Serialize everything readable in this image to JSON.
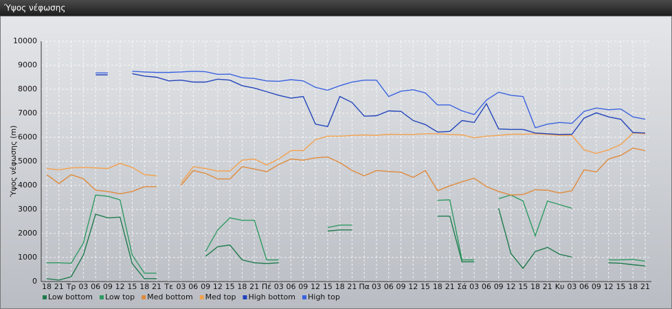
{
  "chart_data": {
    "type": "line",
    "title": "Ύψος νέφωσης",
    "ylabel": "Ύψος νέφωσης (m)",
    "categories": [
      "18",
      "21",
      "Τρ",
      "03",
      "06",
      "09",
      "12",
      "15",
      "18",
      "21",
      "Τε",
      "03",
      "06",
      "09",
      "12",
      "15",
      "18",
      "21",
      "Πέ",
      "03",
      "06",
      "09",
      "12",
      "15",
      "18",
      "21",
      "Πα",
      "03",
      "06",
      "09",
      "12",
      "15",
      "18",
      "21",
      "Σά",
      "03",
      "06",
      "09",
      "12",
      "15",
      "18",
      "21",
      "Κυ",
      "03",
      "06",
      "09",
      "12",
      "15",
      "18",
      "21"
    ],
    "ylim": [
      0,
      10000
    ],
    "yticks": [
      0,
      1000,
      2000,
      3000,
      4000,
      5000,
      6000,
      7000,
      8000,
      9000,
      10000
    ],
    "grid": true,
    "series": [
      {
        "name": "Low bottom",
        "color": "#1f7a4c",
        "values": [
          120,
          60,
          200,
          1100,
          2800,
          2650,
          2680,
          750,
          120,
          120,
          null,
          null,
          null,
          1050,
          1450,
          1520,
          900,
          780,
          750,
          780,
          null,
          null,
          null,
          2100,
          2150,
          2150,
          null,
          null,
          null,
          null,
          null,
          null,
          2720,
          2720,
          820,
          820,
          null,
          3050,
          1170,
          550,
          1250,
          1420,
          1130,
          1020,
          null,
          null,
          780,
          760,
          700,
          650
        ]
      },
      {
        "name": "Low top",
        "color": "#2e9a62",
        "values": [
          780,
          780,
          760,
          1600,
          3600,
          3550,
          3400,
          1100,
          350,
          350,
          null,
          null,
          null,
          1250,
          2150,
          2650,
          2550,
          2550,
          900,
          900,
          null,
          null,
          null,
          2250,
          2350,
          2350,
          null,
          null,
          null,
          null,
          null,
          null,
          3380,
          3400,
          900,
          900,
          null,
          3450,
          3600,
          3350,
          1900,
          3350,
          3200,
          3050,
          null,
          null,
          900,
          900,
          920,
          850
        ]
      },
      {
        "name": "Med bottom",
        "color": "#e08a3a",
        "values": [
          4450,
          4080,
          4450,
          4280,
          3800,
          3750,
          3650,
          3750,
          3950,
          3950,
          null,
          4000,
          4620,
          4500,
          4270,
          4270,
          4780,
          4680,
          4570,
          4870,
          5100,
          5050,
          5150,
          5180,
          4950,
          4620,
          4400,
          4620,
          4580,
          4550,
          4330,
          4620,
          3780,
          3980,
          4150,
          4300,
          3950,
          3750,
          3600,
          3620,
          3820,
          3800,
          3680,
          3780,
          4650,
          4560,
          5100,
          5250,
          5550,
          5450
        ]
      },
      {
        "name": "Med top",
        "color": "#f4a24e",
        "values": [
          4700,
          4650,
          4730,
          4750,
          4730,
          4700,
          4920,
          4750,
          4450,
          4400,
          null,
          4100,
          4780,
          4700,
          4600,
          4600,
          5050,
          5100,
          4850,
          5100,
          5450,
          5450,
          5900,
          6050,
          6050,
          6080,
          6100,
          6080,
          6130,
          6120,
          6120,
          6150,
          6150,
          6120,
          6100,
          5980,
          6050,
          6080,
          6130,
          6130,
          6150,
          6120,
          6080,
          6080,
          5480,
          5330,
          5480,
          5700,
          6180,
          6150
        ]
      },
      {
        "name": "High bottom",
        "color": "#2244bb",
        "values": [
          null,
          null,
          null,
          null,
          8600,
          8600,
          null,
          8650,
          8550,
          8500,
          8350,
          8380,
          8300,
          8300,
          8420,
          8380,
          8150,
          8050,
          7900,
          7750,
          7630,
          7700,
          6550,
          6450,
          7700,
          7450,
          6880,
          6900,
          7100,
          7080,
          6700,
          6530,
          6220,
          6250,
          6700,
          6620,
          7400,
          6350,
          6330,
          6330,
          6180,
          6150,
          6120,
          6130,
          6800,
          7020,
          6850,
          6750,
          6200,
          6180
        ]
      },
      {
        "name": "High top",
        "color": "#3a62e0",
        "values": [
          null,
          null,
          null,
          null,
          8680,
          8680,
          null,
          8750,
          8720,
          8700,
          8700,
          8720,
          8750,
          8730,
          8620,
          8630,
          8480,
          8450,
          8350,
          8330,
          8400,
          8350,
          8080,
          7960,
          8150,
          8300,
          8380,
          8380,
          7700,
          7920,
          7980,
          7850,
          7350,
          7350,
          7100,
          6950,
          7550,
          7880,
          7750,
          7700,
          6400,
          6550,
          6620,
          6580,
          7080,
          7220,
          7150,
          7180,
          6850,
          6750
        ]
      }
    ]
  }
}
